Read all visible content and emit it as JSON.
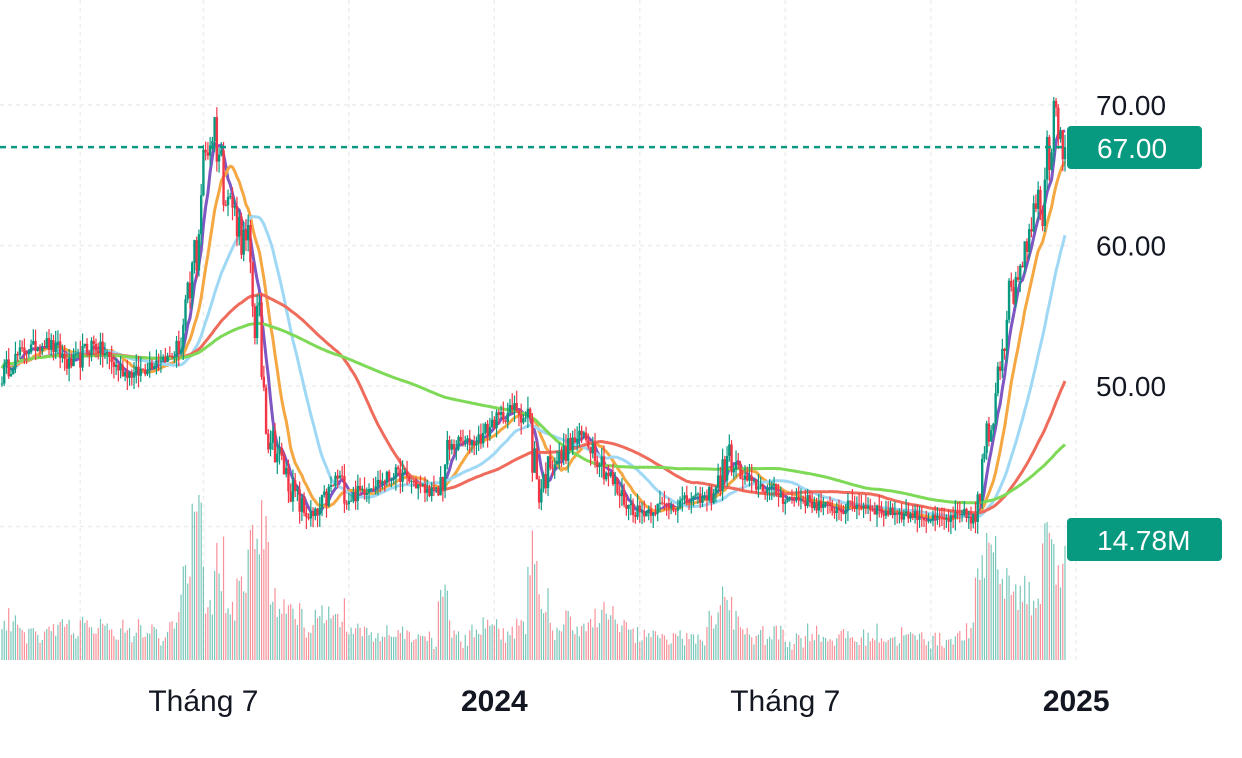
{
  "colors": {
    "up": "#089981",
    "down": "#f23645",
    "badge": "#089981",
    "grid": "#eeeeee",
    "price_line": "#089981"
  },
  "chart_data": {
    "type": "line",
    "title": "",
    "xlabel": "",
    "ylabel": "",
    "y_ticks": [
      "70.00",
      "60.00",
      "50.00"
    ],
    "y_tick_values": [
      70,
      60,
      50
    ],
    "hidden_tick_value": 40,
    "ylim": [
      35.5,
      77.5
    ],
    "x_labels": [
      {
        "text": "Tháng 7",
        "bold": false,
        "week": 18
      },
      {
        "text": "2024",
        "bold": true,
        "week": 44
      },
      {
        "text": "Tháng 7",
        "bold": false,
        "week": 70
      },
      {
        "text": "2025",
        "bold": true,
        "week": 96
      }
    ],
    "grid": true,
    "last_price": {
      "value": 67.0,
      "label": "67.00"
    },
    "last_volume": {
      "value": 14.78,
      "label": "14.78M",
      "unit": "M"
    },
    "volume_max": 22,
    "price_series_weekly": [
      50.8,
      51.8,
      52.5,
      52.8,
      53.0,
      52.5,
      51.5,
      52.0,
      53.0,
      52.5,
      51.5,
      51.0,
      50.8,
      51.5,
      52.0,
      52.0,
      53.0,
      57.0,
      66.0,
      68.5,
      64.0,
      62.0,
      59.0,
      53.0,
      46.5,
      44.5,
      42.5,
      41.0,
      40.5,
      42.0,
      43.5,
      42.0,
      42.5,
      43.0,
      43.2,
      43.8,
      43.5,
      43.0,
      42.5,
      42.5,
      45.5,
      46.0,
      46.0,
      46.5,
      47.5,
      48.0,
      48.5,
      47.5,
      42.5,
      44.5,
      45.0,
      46.0,
      46.5,
      45.5,
      44.0,
      42.5,
      41.5,
      41.0,
      41.2,
      41.5,
      41.5,
      41.8,
      42.0,
      42.0,
      43.0,
      45.0,
      43.5,
      43.0,
      42.8,
      42.5,
      42.0,
      42.0,
      41.8,
      41.5,
      41.3,
      41.2,
      41.5,
      41.5,
      41.3,
      41.0,
      41.0,
      40.8,
      40.8,
      40.5,
      40.5,
      40.5,
      40.8,
      40.5,
      45.0,
      52.0,
      56.0,
      59.0,
      62.0,
      64.0,
      71.0,
      67.0
    ],
    "series": [
      {
        "color": "#7e57c2"
      },
      {
        "color": "#f5a742"
      },
      {
        "color": "#9fd8f5"
      },
      {
        "color": "#ef6b5b"
      },
      {
        "color": "#7ed957"
      }
    ]
  }
}
